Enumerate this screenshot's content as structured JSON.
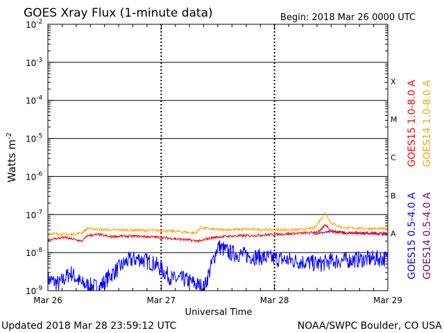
{
  "chart_data": {
    "type": "line",
    "title": "GOES Xray Flux (1-minute data)",
    "begin_label": "Begin:  2018 Mar 26 0000 UTC",
    "xlabel": "Universal Time",
    "ylabel": "Watts m",
    "ylabel_sup": "-2",
    "y_scale": "log",
    "ylim": [
      1e-09,
      0.01
    ],
    "y_ticks": [
      {
        "base": "10",
        "exp": "-2",
        "value": 0.01
      },
      {
        "base": "10",
        "exp": "-3",
        "value": 0.001
      },
      {
        "base": "10",
        "exp": "-4",
        "value": 0.0001
      },
      {
        "base": "10",
        "exp": "-5",
        "value": 1e-05
      },
      {
        "base": "10",
        "exp": "-6",
        "value": 1e-06
      },
      {
        "base": "10",
        "exp": "-7",
        "value": 1e-07
      },
      {
        "base": "10",
        "exp": "-8",
        "value": 1e-08
      },
      {
        "base": "10",
        "exp": "-9",
        "value": 1e-09
      }
    ],
    "x_ticks": [
      "Mar 26",
      "Mar 27",
      "Mar 28",
      "Mar 29"
    ],
    "xlim_days": [
      0,
      3
    ],
    "flare_classes": [
      {
        "label": "X",
        "value": 0.0001
      },
      {
        "label": "M",
        "value": 1e-05
      },
      {
        "label": "C",
        "value": 1e-06
      },
      {
        "label": "B",
        "value": 1e-07
      },
      {
        "label": "A",
        "value": 1e-08
      }
    ],
    "series": [
      {
        "name": "GOES15 1.0-8.0 A",
        "color": "#ff0000",
        "x_days": [
          0,
          0.15,
          0.3,
          0.35,
          0.45,
          0.5,
          0.55,
          0.6,
          0.8,
          1.0,
          1.2,
          1.35,
          1.4,
          1.5,
          1.6,
          1.8,
          2.0,
          2.2,
          2.3,
          2.4,
          2.45,
          2.5,
          2.6,
          2.8,
          3.0
        ],
        "values": [
          2.2e-08,
          2.5e-08,
          2e-08,
          2.8e-08,
          3e-08,
          2.8e-08,
          2.6e-08,
          2.7e-08,
          2.7e-08,
          2.5e-08,
          2.2e-08,
          2e-08,
          2.3e-08,
          2.6e-08,
          2.7e-08,
          2.8e-08,
          3e-08,
          3.2e-08,
          3.3e-08,
          3.6e-08,
          5.5e-08,
          3.8e-08,
          3.3e-08,
          3.2e-08,
          3e-08
        ]
      },
      {
        "name": "GOES14 1.0-8.0 A",
        "color": "#ffa500",
        "x_days": [
          0,
          0.2,
          0.3,
          0.35,
          0.5,
          0.75,
          1.0,
          1.2,
          1.3,
          1.35,
          1.5,
          1.8,
          2.0,
          2.2,
          2.35,
          2.45,
          2.5,
          2.6,
          2.8,
          3.0
        ],
        "values": [
          3.2e-08,
          3e-08,
          3.3e-08,
          4.3e-08,
          4e-08,
          3.9e-08,
          3.8e-08,
          3.5e-08,
          3.2e-08,
          4.5e-08,
          4e-08,
          4.1e-08,
          4e-08,
          4e-08,
          4.4e-08,
          1.1e-07,
          6e-08,
          4.5e-08,
          4.3e-08,
          4.2e-08
        ]
      },
      {
        "name": "GOES15 0.5-4.0 A",
        "color": "#0000ff",
        "x_days": [
          0,
          0.1,
          0.2,
          0.3,
          0.45,
          0.55,
          0.7,
          0.8,
          0.95,
          1.1,
          1.2,
          1.3,
          1.38,
          1.5,
          1.6,
          1.8,
          2.0,
          2.2,
          2.4,
          2.5,
          2.7,
          2.9,
          3.0
        ],
        "values": [
          2e-09,
          1.5e-09,
          3e-09,
          1.5e-09,
          1.2e-09,
          2.5e-09,
          6e-09,
          7e-09,
          5e-09,
          2e-09,
          2e-09,
          1.5e-09,
          1.2e-09,
          1.5e-08,
          1e-08,
          8e-09,
          7e-09,
          6e-09,
          5e-09,
          6e-09,
          6.5e-09,
          7e-09,
          7e-09
        ]
      },
      {
        "name": "GOES14 0.5-4.0 A",
        "color": "#800080",
        "x_days": [
          2.35,
          2.5,
          2.6,
          2.8,
          3.0
        ],
        "values": [
          3.2e-08,
          3.5e-08,
          3.4e-08,
          3.3e-08,
          3.2e-08
        ]
      }
    ]
  },
  "footer": {
    "updated": "Updated 2018 Mar 28 23:59:12 UTC",
    "credit": "NOAA/SWPC Boulder, CO USA"
  }
}
